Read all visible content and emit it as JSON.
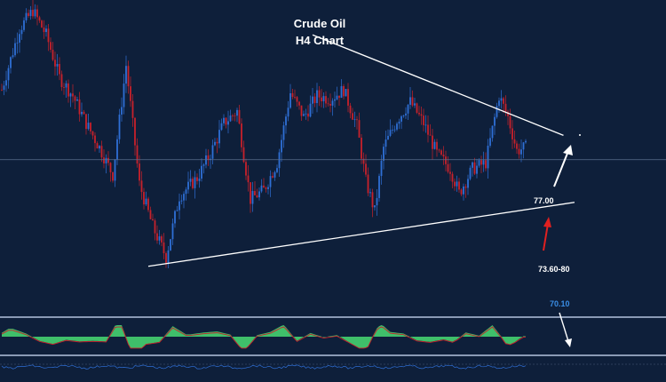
{
  "title": "Crude Oil",
  "subtitle": "H4 Chart",
  "colors": {
    "background": "#0e1f3a",
    "bull_candle": "#2f6fd6",
    "bear_candle": "#c8212b",
    "trendline": "#ffffff",
    "projection_arrow": "#ffffff",
    "bounce_arrow": "#e02020",
    "oscillator_fill": "#3fbf6a",
    "oscillator_line": "#c8212b",
    "level_label_blue": "#3a8ee6"
  },
  "chart_data": [
    {
      "type": "candlestick",
      "title": "Crude Oil",
      "subtitle": "H4 Chart",
      "price_range": [
        70.0,
        80.3
      ],
      "horizontal_level": 75.2,
      "annotations": [
        {
          "text": "77.00",
          "price": 77.0
        },
        {
          "text": "73.60-80",
          "price": 73.7
        }
      ],
      "trendlines": [
        {
          "name": "upper",
          "from_bar": 140,
          "from_price": 79.3,
          "to_bar": 253,
          "to_price": 76.0
        },
        {
          "name": "lower",
          "from_bar": 66,
          "from_price": 71.7,
          "to_bar": 258,
          "to_price": 73.8
        }
      ],
      "close_path": [
        [
          0,
          77.5
        ],
        [
          8,
          79.5
        ],
        [
          14,
          80.1
        ],
        [
          20,
          79.3
        ],
        [
          26,
          77.9
        ],
        [
          32,
          77.3
        ],
        [
          38,
          76.4
        ],
        [
          44,
          75.6
        ],
        [
          50,
          74.7
        ],
        [
          56,
          78.3
        ],
        [
          62,
          74.4
        ],
        [
          68,
          73.0
        ],
        [
          74,
          72.0
        ],
        [
          80,
          74.0
        ],
        [
          88,
          74.6
        ],
        [
          94,
          75.4
        ],
        [
          100,
          76.4
        ],
        [
          106,
          76.8
        ],
        [
          112,
          73.9
        ],
        [
          118,
          74.2
        ],
        [
          124,
          75.1
        ],
        [
          130,
          77.4
        ],
        [
          136,
          76.6
        ],
        [
          142,
          77.3
        ],
        [
          148,
          77.2
        ],
        [
          154,
          77.5
        ],
        [
          160,
          76.3
        ],
        [
          164,
          74.5
        ],
        [
          168,
          73.5
        ],
        [
          172,
          75.6
        ],
        [
          178,
          76.5
        ],
        [
          184,
          77.1
        ],
        [
          190,
          76.4
        ],
        [
          196,
          75.4
        ],
        [
          202,
          74.9
        ],
        [
          206,
          74.1
        ],
        [
          212,
          74.9
        ],
        [
          218,
          75.1
        ],
        [
          224,
          77.3
        ],
        [
          228,
          76.6
        ],
        [
          232,
          75.5
        ],
        [
          236,
          75.6
        ]
      ]
    },
    {
      "type": "area",
      "title": "",
      "note": "oscillator histogram (green) with signal line (red), lower panel",
      "level": 70.1,
      "level_label": "70.10"
    },
    {
      "type": "line",
      "title": "",
      "note": "thin blue oscillator line, bottom strip"
    }
  ]
}
